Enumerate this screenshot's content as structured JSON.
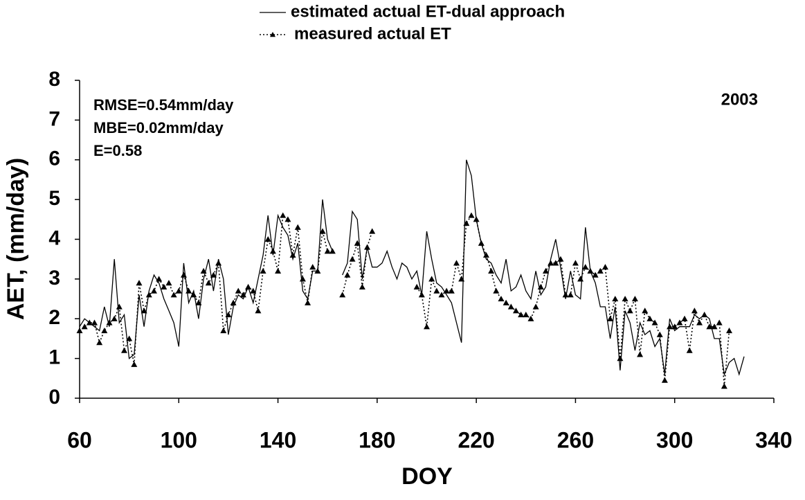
{
  "chart_data": {
    "type": "line",
    "xlabel": "DOY",
    "ylabel": "AET, (mm/day)",
    "annotations": [
      "RMSE=0.54mm/day",
      "MBE=0.02mm/day",
      "E=0.58",
      "2003"
    ],
    "xlim": [
      60,
      340
    ],
    "xticks": [
      60,
      100,
      140,
      180,
      220,
      260,
      300,
      340
    ],
    "ylim": [
      0,
      8
    ],
    "yticks": [
      0,
      1,
      2,
      3,
      4,
      5,
      6,
      7,
      8
    ],
    "grid": false,
    "legend": "top",
    "series": [
      {
        "name": "estimated actual ET-dual approach",
        "color": "#000000",
        "style": "solid",
        "x": [
          60,
          62,
          64,
          66,
          68,
          70,
          72,
          74,
          76,
          78,
          80,
          82,
          84,
          86,
          88,
          90,
          92,
          94,
          96,
          98,
          100,
          102,
          104,
          106,
          108,
          110,
          112,
          114,
          116,
          118,
          120,
          122,
          124,
          126,
          128,
          130,
          132,
          134,
          136,
          138,
          140,
          142,
          144,
          146,
          148,
          150,
          152,
          154,
          156,
          158,
          160,
          162,
          164,
          166,
          168,
          170,
          172,
          174,
          176,
          178,
          180,
          182,
          184,
          186,
          188,
          190,
          192,
          194,
          196,
          198,
          200,
          202,
          204,
          206,
          208,
          210,
          212,
          214,
          216,
          218,
          220,
          222,
          224,
          226,
          228,
          230,
          232,
          234,
          236,
          238,
          240,
          242,
          244,
          246,
          248,
          250,
          252,
          254,
          256,
          258,
          260,
          262,
          264,
          266,
          268,
          270,
          272,
          274,
          276,
          278,
          280,
          282,
          284,
          286,
          288,
          290,
          292,
          294,
          296,
          298,
          300,
          302,
          304,
          306,
          308,
          310,
          312,
          314,
          316,
          318,
          320,
          322,
          324,
          326,
          328
        ],
        "values": [
          1.8,
          2.0,
          1.9,
          1.8,
          1.7,
          2.3,
          1.8,
          3.5,
          1.9,
          2.1,
          1.0,
          1.1,
          2.6,
          1.8,
          2.7,
          3.1,
          2.9,
          2.5,
          2.2,
          1.9,
          1.3,
          3.4,
          2.4,
          2.7,
          2.0,
          3.0,
          3.5,
          2.7,
          3.5,
          3.0,
          1.6,
          2.3,
          2.6,
          2.5,
          2.8,
          2.4,
          3.0,
          3.6,
          4.6,
          3.6,
          4.6,
          4.3,
          4.1,
          3.5,
          3.9,
          2.7,
          2.5,
          3.2,
          3.2,
          5.0,
          4.0,
          3.7,
          null,
          3.1,
          3.4,
          4.7,
          4.5,
          3.0,
          3.8,
          3.3,
          3.3,
          3.4,
          3.7,
          3.3,
          3.0,
          3.4,
          3.3,
          3.0,
          3.2,
          2.6,
          4.2,
          3.5,
          2.9,
          2.8,
          2.6,
          2.4,
          1.9,
          1.4,
          6.0,
          5.6,
          4.5,
          3.9,
          3.5,
          3.4,
          3.1,
          2.9,
          3.5,
          2.7,
          2.8,
          3.1,
          2.7,
          2.5,
          3.2,
          2.6,
          2.8,
          3.5,
          4.0,
          3.3,
          2.5,
          3.2,
          2.6,
          2.5,
          4.3,
          3.2,
          2.9,
          2.3,
          2.3,
          1.5,
          2.3,
          0.7,
          2.2,
          1.9,
          1.2,
          1.9,
          1.6,
          1.7,
          1.3,
          1.5,
          0.6,
          2.0,
          1.7,
          1.8,
          1.8,
          1.8,
          2.1,
          2.0,
          2.1,
          2.0,
          1.5,
          1.5,
          0.6,
          0.9,
          1.0,
          0.6,
          1.05
        ]
      },
      {
        "name": "measured actual ET",
        "color": "#000000",
        "style": "dotted",
        "marker": "triangle",
        "x": [
          60,
          62,
          64,
          66,
          68,
          70,
          72,
          74,
          76,
          78,
          80,
          82,
          84,
          86,
          88,
          90,
          92,
          94,
          96,
          98,
          100,
          102,
          104,
          106,
          108,
          110,
          112,
          114,
          116,
          118,
          120,
          122,
          124,
          126,
          128,
          130,
          132,
          134,
          136,
          138,
          140,
          142,
          144,
          146,
          148,
          150,
          152,
          154,
          156,
          158,
          160,
          162,
          164,
          166,
          168,
          170,
          172,
          174,
          176,
          178,
          180,
          196,
          198,
          200,
          202,
          204,
          206,
          208,
          210,
          212,
          214,
          216,
          218,
          220,
          222,
          224,
          226,
          228,
          230,
          232,
          234,
          236,
          238,
          240,
          242,
          244,
          246,
          248,
          250,
          252,
          254,
          256,
          258,
          260,
          262,
          264,
          266,
          268,
          270,
          272,
          274,
          276,
          278,
          280,
          282,
          284,
          286,
          288,
          290,
          292,
          294,
          296,
          298,
          300,
          302,
          304,
          306,
          308,
          310,
          312,
          314,
          316,
          318,
          320,
          322
        ],
        "values": [
          1.7,
          1.8,
          1.9,
          1.9,
          1.4,
          1.7,
          1.9,
          2.0,
          2.3,
          1.2,
          1.5,
          0.85,
          2.9,
          2.2,
          2.6,
          2.7,
          3.0,
          2.8,
          2.9,
          2.6,
          2.7,
          3.1,
          2.7,
          2.6,
          2.4,
          3.2,
          2.9,
          3.1,
          3.4,
          1.7,
          2.1,
          2.4,
          2.7,
          2.6,
          2.8,
          2.7,
          2.2,
          3.2,
          4.0,
          3.7,
          3.2,
          4.6,
          4.5,
          3.6,
          4.3,
          3.0,
          2.4,
          3.3,
          3.2,
          4.2,
          3.7,
          3.7,
          null,
          2.6,
          3.1,
          3.5,
          3.9,
          2.8,
          3.8,
          4.2,
          null,
          2.8,
          2.6,
          1.8,
          3.0,
          2.7,
          2.6,
          2.7,
          2.7,
          3.4,
          3.0,
          4.4,
          4.6,
          4.5,
          3.9,
          3.6,
          3.2,
          2.7,
          2.5,
          2.4,
          2.3,
          2.2,
          2.1,
          2.1,
          2.0,
          2.3,
          2.8,
          3.2,
          3.4,
          3.4,
          3.5,
          2.6,
          2.6,
          3.4,
          3.0,
          3.3,
          3.2,
          3.1,
          3.2,
          3.3,
          2.0,
          2.5,
          1.0,
          2.5,
          2.2,
          2.5,
          1.1,
          2.2,
          2.0,
          1.9,
          1.6,
          0.45,
          1.8,
          1.8,
          1.9,
          2.0,
          1.2,
          2.2,
          1.9,
          2.1,
          1.8,
          1.8,
          1.9,
          0.3,
          1.7
        ]
      }
    ]
  }
}
